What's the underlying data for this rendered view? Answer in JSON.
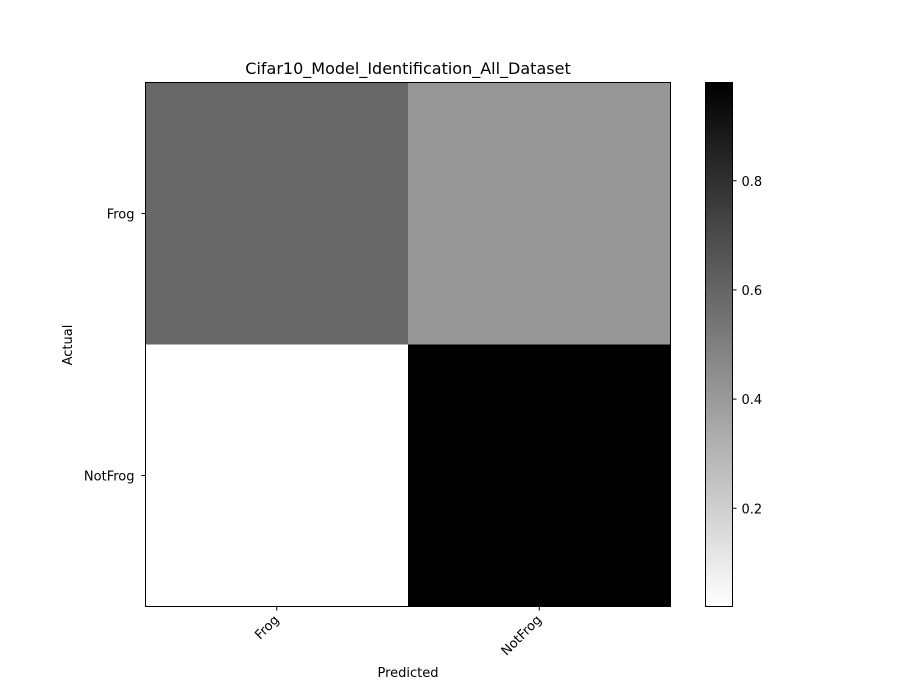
{
  "chart_data": {
    "type": "heatmap",
    "title": "Cifar10_Model_Identification_All_Dataset",
    "xlabel": "Predicted",
    "ylabel": "Actual",
    "x_categories": [
      "Frog",
      "NotFrog"
    ],
    "y_categories": [
      "Frog",
      "NotFrog"
    ],
    "values": [
      [
        0.59,
        0.41
      ],
      [
        0.02,
        0.98
      ]
    ],
    "colormap": "gray_r",
    "value_range": [
      0.02,
      0.98
    ],
    "colorbar": {
      "ticks": [
        0.2,
        0.4,
        0.6,
        0.8
      ],
      "tick_labels": [
        "0.2",
        "0.4",
        "0.6",
        "0.8"
      ]
    },
    "grid": false
  }
}
